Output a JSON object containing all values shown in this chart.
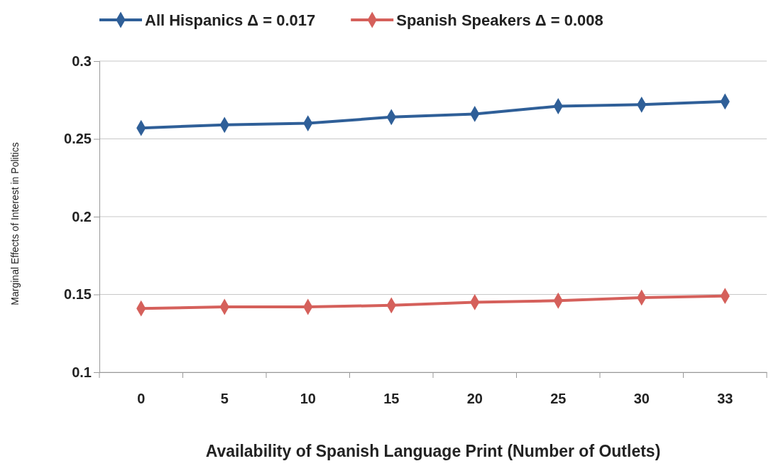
{
  "chart_data": {
    "type": "line",
    "xlabel": "Availability of Spanish Language Print (Number of Outlets)",
    "ylabel": "Marginal Effects of Interest in Politics",
    "categories": [
      "0",
      "5",
      "10",
      "15",
      "20",
      "25",
      "30",
      "33"
    ],
    "series": [
      {
        "name": "All Hispanics Δ = 0.017",
        "color": "#2f5f98",
        "values": [
          0.257,
          0.259,
          0.26,
          0.264,
          0.266,
          0.271,
          0.272,
          0.274
        ]
      },
      {
        "name": "Spanish Speakers Δ = 0.008",
        "color": "#d5605b",
        "values": [
          0.141,
          0.142,
          0.142,
          0.143,
          0.145,
          0.146,
          0.148,
          0.149
        ]
      }
    ],
    "ylim": [
      0.1,
      0.3
    ],
    "yticks": [
      0.1,
      0.15,
      0.2,
      0.25,
      0.3
    ],
    "grid": "y",
    "legend": "top",
    "marker": "diamond",
    "line_style": "solid"
  }
}
